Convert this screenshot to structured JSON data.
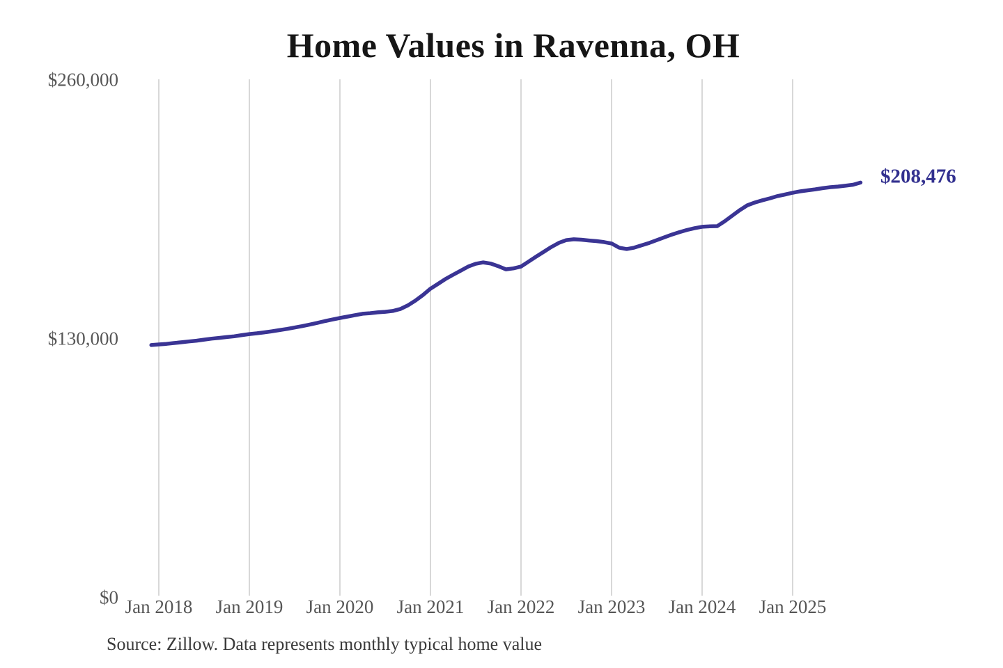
{
  "chart": {
    "title": "Home Values in Ravenna, OH",
    "end_label": "$208,476",
    "source_note": "Source: Zillow. Data represents monthly typical home value"
  },
  "colors": {
    "line": "#3a3494",
    "end_label": "#32308f",
    "grid": "#cccccc",
    "axis_text": "#565656",
    "title_text": "#161616",
    "background": "#ffffff"
  },
  "chart_data": {
    "type": "line",
    "title": "Home Values in Ravenna, OH",
    "xlabel": "",
    "ylabel": "",
    "ylim": [
      0,
      260000
    ],
    "grid": "vertical-only",
    "legend": "none",
    "source": "Source: Zillow. Data represents monthly typical home value",
    "annotation": {
      "text": "$208,476",
      "value": 208476,
      "x": "2025-10"
    },
    "y_ticks": [
      {
        "label": "$0",
        "value": 0
      },
      {
        "label": "$130,000",
        "value": 130000
      },
      {
        "label": "$260,000",
        "value": 260000
      }
    ],
    "x_ticks": [
      {
        "label": "Jan 2018",
        "month": "2018-01"
      },
      {
        "label": "Jan 2019",
        "month": "2019-01"
      },
      {
        "label": "Jan 2020",
        "month": "2020-01"
      },
      {
        "label": "Jan 2021",
        "month": "2021-01"
      },
      {
        "label": "Jan 2022",
        "month": "2022-01"
      },
      {
        "label": "Jan 2023",
        "month": "2023-01"
      },
      {
        "label": "Jan 2024",
        "month": "2024-01"
      },
      {
        "label": "Jan 2025",
        "month": "2025-01"
      }
    ],
    "series": [
      {
        "name": "Monthly typical home value",
        "x": [
          "2017-12",
          "2018-01",
          "2018-02",
          "2018-03",
          "2018-04",
          "2018-05",
          "2018-06",
          "2018-07",
          "2018-08",
          "2018-09",
          "2018-10",
          "2018-11",
          "2018-12",
          "2019-01",
          "2019-02",
          "2019-03",
          "2019-04",
          "2019-05",
          "2019-06",
          "2019-07",
          "2019-08",
          "2019-09",
          "2019-10",
          "2019-11",
          "2019-12",
          "2020-01",
          "2020-02",
          "2020-03",
          "2020-04",
          "2020-05",
          "2020-06",
          "2020-07",
          "2020-08",
          "2020-09",
          "2020-10",
          "2020-11",
          "2020-12",
          "2021-01",
          "2021-02",
          "2021-03",
          "2021-04",
          "2021-05",
          "2021-06",
          "2021-07",
          "2021-08",
          "2021-09",
          "2021-10",
          "2021-11",
          "2021-12",
          "2022-01",
          "2022-02",
          "2022-03",
          "2022-04",
          "2022-05",
          "2022-06",
          "2022-07",
          "2022-08",
          "2022-09",
          "2022-10",
          "2022-11",
          "2022-12",
          "2023-01",
          "2023-02",
          "2023-03",
          "2023-04",
          "2023-05",
          "2023-06",
          "2023-07",
          "2023-08",
          "2023-09",
          "2023-10",
          "2023-11",
          "2023-12",
          "2024-01",
          "2024-02",
          "2024-03",
          "2024-04",
          "2024-05",
          "2024-06",
          "2024-07",
          "2024-08",
          "2024-09",
          "2024-10",
          "2024-11",
          "2024-12",
          "2025-01",
          "2025-02",
          "2025-03",
          "2025-04",
          "2025-05",
          "2025-06",
          "2025-07",
          "2025-08",
          "2025-09",
          "2025-10"
        ],
        "values": [
          126900,
          127200,
          127500,
          127900,
          128300,
          128700,
          129100,
          129600,
          130100,
          130500,
          130900,
          131300,
          131900,
          132400,
          132800,
          133300,
          133800,
          134400,
          135000,
          135700,
          136400,
          137200,
          138000,
          138900,
          139700,
          140500,
          141200,
          141900,
          142600,
          142900,
          143300,
          143600,
          144000,
          145000,
          146800,
          149200,
          152000,
          155200,
          157600,
          160100,
          162200,
          164200,
          166300,
          167700,
          168400,
          167800,
          166500,
          164900,
          165400,
          166300,
          168800,
          171300,
          173700,
          176100,
          178200,
          179600,
          180000,
          179800,
          179400,
          179100,
          178600,
          177900,
          175800,
          175100,
          175800,
          177000,
          178200,
          179600,
          181000,
          182400,
          183600,
          184700,
          185600,
          186300,
          186500,
          186600,
          189100,
          191900,
          194700,
          197100,
          198500,
          199600,
          200600,
          201700,
          202500,
          203400,
          204100,
          204600,
          205100,
          205700,
          206200,
          206500,
          206900,
          207400,
          208476
        ]
      }
    ]
  }
}
